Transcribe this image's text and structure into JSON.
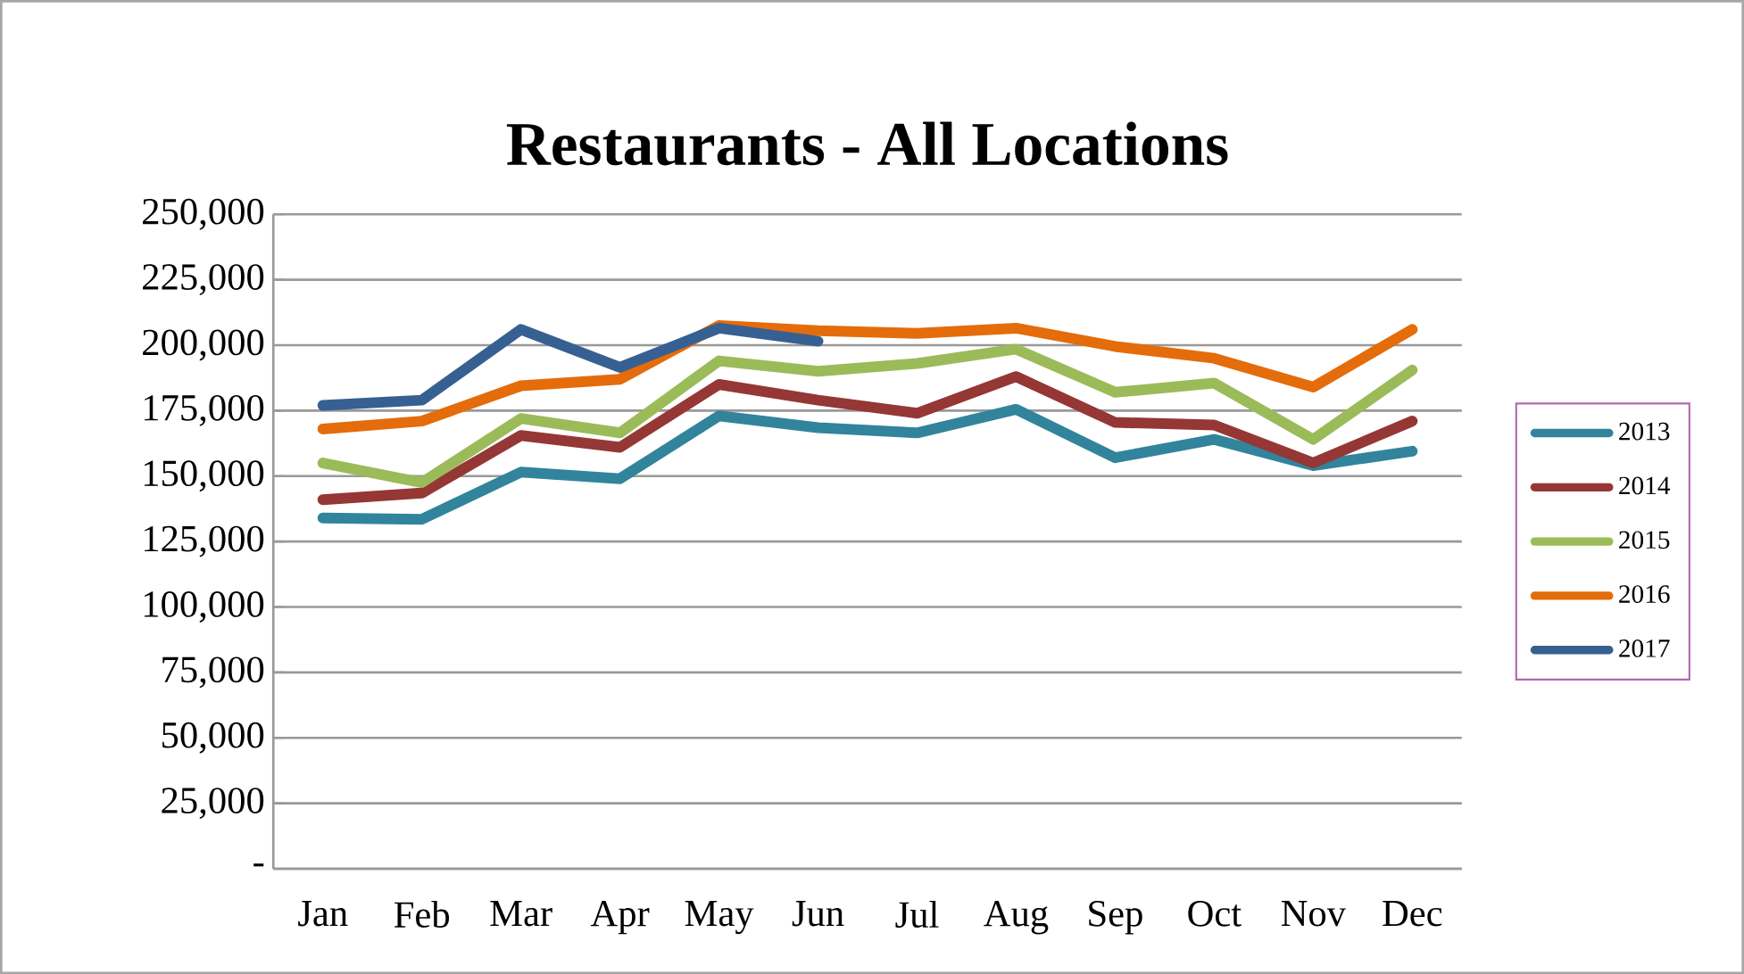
{
  "chart_data": {
    "type": "line",
    "title": "Restaurants - All Locations",
    "categories": [
      "Jan",
      "Feb",
      "Mar",
      "Apr",
      "May",
      "Jun",
      "Jul",
      "Aug",
      "Sep",
      "Oct",
      "Nov",
      "Dec"
    ],
    "series": [
      {
        "name": "2013",
        "color": "#31849b",
        "values": [
          134000,
          133500,
          151500,
          149000,
          173000,
          168500,
          166500,
          175500,
          157000,
          164000,
          154000,
          159500
        ]
      },
      {
        "name": "2014",
        "color": "#953735",
        "values": [
          141000,
          143500,
          165500,
          161000,
          185000,
          179000,
          174000,
          188000,
          170500,
          169500,
          155000,
          171000
        ]
      },
      {
        "name": "2015",
        "color": "#9bbb59",
        "values": [
          155000,
          147500,
          172000,
          166500,
          194000,
          190000,
          193000,
          198500,
          182000,
          185500,
          164000,
          190500
        ]
      },
      {
        "name": "2016",
        "color": "#e46c0a",
        "values": [
          168000,
          171000,
          184500,
          187000,
          207500,
          205500,
          204500,
          206500,
          199500,
          195000,
          184000,
          206000
        ]
      },
      {
        "name": "2017",
        "color": "#376092",
        "values": [
          177000,
          179000,
          206000,
          191500,
          206500,
          201500,
          null,
          null,
          null,
          null,
          null,
          null
        ]
      }
    ],
    "ylim": [
      0,
      250000
    ],
    "yticks": [
      {
        "value": 0,
        "label": "-"
      },
      {
        "value": 25000,
        "label": "25,000"
      },
      {
        "value": 50000,
        "label": "50,000"
      },
      {
        "value": 75000,
        "label": "75,000"
      },
      {
        "value": 100000,
        "label": "100,000"
      },
      {
        "value": 125000,
        "label": "125,000"
      },
      {
        "value": 150000,
        "label": "150,000"
      },
      {
        "value": 175000,
        "label": "175,000"
      },
      {
        "value": 200000,
        "label": "200,000"
      },
      {
        "value": 225000,
        "label": "225,000"
      },
      {
        "value": 250000,
        "label": "250,000"
      }
    ],
    "grid": "y",
    "legend": "right",
    "marker": "none",
    "line_style": "solid"
  }
}
